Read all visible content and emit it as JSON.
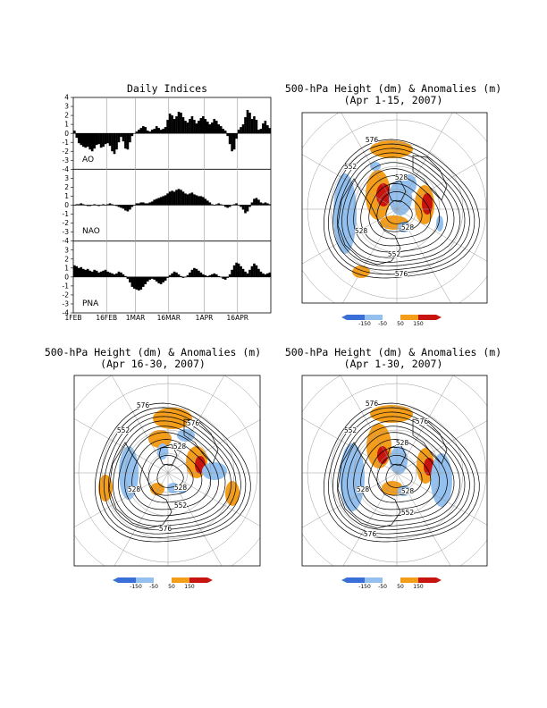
{
  "chart_data": [
    {
      "type": "bar",
      "title": "Daily Indices",
      "x_tick_labels": [
        "1FEB",
        "16FEB",
        "1MAR",
        "16MAR",
        "1APR",
        "16APR"
      ],
      "y_ticks": [
        -4,
        -3,
        -2,
        -1,
        0,
        1,
        2,
        3,
        4
      ],
      "ylim": [
        -4,
        4
      ],
      "series": [
        {
          "name": "AO",
          "values": [
            0.3,
            -0.5,
            -1.1,
            -1.3,
            -1.5,
            -1.6,
            -1.5,
            -1.8,
            -2.0,
            -1.7,
            -1.3,
            -1.2,
            -1.6,
            -1.5,
            -1.2,
            -1.1,
            -1.4,
            -2.0,
            -2.3,
            -1.8,
            -1.0,
            -0.4,
            -0.9,
            -1.7,
            -1.8,
            -1.0,
            -0.3,
            0.0,
            0.2,
            0.4,
            0.6,
            0.8,
            0.7,
            0.3,
            0.2,
            0.4,
            0.5,
            0.8,
            0.6,
            0.4,
            0.5,
            0.7,
            1.5,
            2.2,
            2.0,
            1.6,
            1.9,
            2.4,
            2.3,
            1.8,
            1.4,
            1.2,
            1.6,
            1.9,
            1.5,
            1.1,
            1.4,
            1.7,
            1.9,
            1.6,
            1.3,
            1.0,
            1.2,
            1.6,
            1.4,
            1.0,
            0.8,
            0.5,
            0.3,
            -0.3,
            -1.2,
            -2.0,
            -1.8,
            -0.6,
            0.4,
            0.7,
            1.0,
            1.8,
            2.6,
            2.3,
            1.6,
            1.9,
            1.5,
            0.4,
            0.5,
            1.1,
            1.4,
            0.9,
            0.6
          ]
        },
        {
          "name": "NAO",
          "values": [
            0.0,
            0.1,
            0.1,
            0.2,
            0.1,
            0.0,
            -0.1,
            -0.1,
            0.0,
            0.1,
            0.0,
            -0.1,
            0.0,
            0.1,
            0.0,
            0.1,
            0.2,
            0.1,
            0.0,
            -0.1,
            -0.2,
            -0.3,
            -0.4,
            -0.6,
            -0.7,
            -0.5,
            -0.2,
            0.0,
            0.2,
            0.2,
            0.3,
            0.3,
            0.2,
            0.2,
            0.3,
            0.4,
            0.6,
            0.7,
            0.8,
            0.9,
            1.0,
            1.1,
            1.3,
            1.5,
            1.6,
            1.5,
            1.7,
            1.8,
            1.7,
            1.5,
            1.3,
            1.2,
            1.3,
            1.4,
            1.2,
            1.1,
            1.0,
            1.0,
            0.9,
            0.7,
            0.5,
            0.3,
            0.1,
            0.0,
            0.1,
            0.2,
            0.1,
            0.0,
            -0.2,
            -0.3,
            -0.2,
            0.0,
            0.1,
            0.2,
            0.0,
            -0.2,
            -0.5,
            -0.9,
            -0.7,
            -0.2,
            0.3,
            0.7,
            0.8,
            0.6,
            0.3,
            0.2,
            0.3,
            0.2,
            0.1
          ]
        },
        {
          "name": "PNA",
          "values": [
            1.3,
            1.2,
            1.0,
            1.1,
            0.9,
            0.8,
            0.9,
            0.7,
            0.6,
            0.8,
            0.7,
            0.5,
            0.6,
            0.7,
            0.8,
            0.6,
            0.5,
            0.4,
            0.3,
            0.4,
            0.6,
            0.5,
            0.3,
            0.1,
            -0.2,
            -0.6,
            -1.1,
            -1.3,
            -1.4,
            -1.5,
            -1.4,
            -1.1,
            -0.8,
            -0.5,
            -0.3,
            -0.2,
            -0.3,
            -0.5,
            -0.7,
            -0.8,
            -0.6,
            -0.4,
            -0.1,
            0.2,
            0.4,
            0.6,
            0.5,
            0.3,
            0.1,
            -0.1,
            0.0,
            0.2,
            0.5,
            0.8,
            1.0,
            0.9,
            0.7,
            0.5,
            0.3,
            0.2,
            0.1,
            0.2,
            0.3,
            0.4,
            0.3,
            0.1,
            0.0,
            -0.2,
            -0.3,
            -0.1,
            0.3,
            0.8,
            1.3,
            1.6,
            1.5,
            1.2,
            0.9,
            0.6,
            0.4,
            0.8,
            1.2,
            1.5,
            1.3,
            0.9,
            0.6,
            0.4,
            0.3,
            0.4,
            0.5
          ]
        }
      ]
    },
    {
      "type": "map",
      "title": "500-hPa Height (dm) & Anomalies (m)",
      "subtitle": "(Apr 1-15, 2007)",
      "contour_labels": [
        "576",
        "552",
        "528",
        "528",
        "528",
        "552",
        "576"
      ],
      "colorbar_ticks": [
        "-150",
        "-50",
        "50",
        "150"
      ]
    },
    {
      "type": "map",
      "title": "500-hPa Height (dm) & Anomalies (m)",
      "subtitle": "(Apr 16-30, 2007)",
      "contour_labels": [
        "576",
        "576",
        "552",
        "528",
        "528",
        "528",
        "552",
        "576"
      ],
      "colorbar_ticks": [
        "-150",
        "-50",
        "50",
        "150"
      ]
    },
    {
      "type": "map",
      "title": "500-hPa Height (dm) & Anomalies (m)",
      "subtitle": "(Apr 1-30, 2007)",
      "contour_labels": [
        "576",
        "576",
        "552",
        "528",
        "528",
        "528",
        "552",
        "576"
      ],
      "colorbar_ticks": [
        "-150",
        "-50",
        "50",
        "150"
      ]
    }
  ],
  "colors": {
    "strong_negative": "#3a6fd8",
    "negative": "#93c0ee",
    "positive": "#f49d1a",
    "strong_positive": "#c8140e"
  }
}
